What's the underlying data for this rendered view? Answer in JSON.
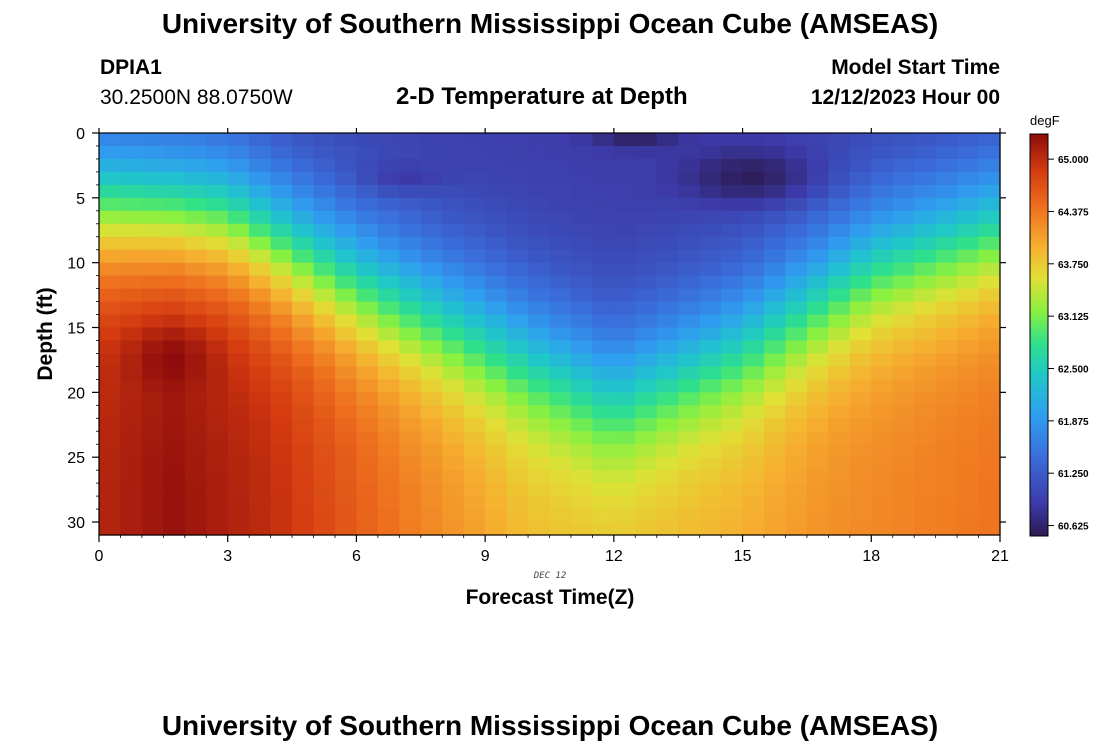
{
  "page": {
    "title": "University of Southern Mississippi Ocean Cube (AMSEAS)",
    "station": "DPIA1",
    "coordinates": "30.2500N  88.0750W",
    "subtitle": "2-D Temperature at Depth",
    "start_label": "Model Start Time",
    "start_value": "12/12/2023 Hour 00",
    "footer_title": "University of Southern Mississippi Ocean Cube (AMSEAS)"
  },
  "chart_data": {
    "type": "heatmap",
    "title": "2-D Temperature at Depth",
    "xlabel": "Forecast Time(Z)",
    "ylabel": "Depth (ft)",
    "x_annotation": "DEC 12",
    "xlim": [
      0,
      21
    ],
    "ylim": [
      0,
      31
    ],
    "x_ticks": [
      0,
      3,
      6,
      9,
      12,
      15,
      18,
      21
    ],
    "y_ticks": [
      0,
      5,
      10,
      15,
      20,
      25,
      30
    ],
    "colorbar": {
      "unit": "degF",
      "min": 60.5,
      "max": 65.3,
      "ticks": [
        "65.000",
        "64.375",
        "63.750",
        "63.125",
        "62.500",
        "61.875",
        "61.250",
        "60.625"
      ],
      "tick_values": [
        65.0,
        64.375,
        63.75,
        63.125,
        62.5,
        61.875,
        61.25,
        60.625
      ],
      "stops": [
        [
          0.0,
          "#2b1a4f"
        ],
        [
          0.08,
          "#3c3aa8"
        ],
        [
          0.2,
          "#3a6fdc"
        ],
        [
          0.3,
          "#2f9ef0"
        ],
        [
          0.4,
          "#1fc8c8"
        ],
        [
          0.48,
          "#2fe08a"
        ],
        [
          0.56,
          "#8af040"
        ],
        [
          0.64,
          "#e0e035"
        ],
        [
          0.72,
          "#f6b030"
        ],
        [
          0.82,
          "#ee6e1e"
        ],
        [
          0.91,
          "#d33a10"
        ],
        [
          1.0,
          "#8e0c0c"
        ]
      ]
    },
    "grid_shape": {
      "time_steps": 42,
      "depth_levels": 31
    },
    "model_description": {
      "surface_temp": 60.9,
      "deep_temp_by_time": [
        [
          0,
          65.05
        ],
        [
          1.7,
          65.25
        ],
        [
          4,
          65.0
        ],
        [
          7,
          64.4
        ],
        [
          10,
          63.9
        ],
        [
          12,
          63.85
        ],
        [
          15,
          64.0
        ],
        [
          17,
          64.2
        ],
        [
          21,
          64.4
        ]
      ],
      "thermocline_depth_ft_by_time": [
        [
          0,
          5.5
        ],
        [
          3,
          6.5
        ],
        [
          6,
          11.5
        ],
        [
          9,
          15.5
        ],
        [
          12,
          20.0
        ],
        [
          15,
          16.0
        ],
        [
          18,
          10.0
        ],
        [
          21,
          7.0
        ]
      ],
      "thermocline_width_ft": 3.6,
      "cold_cores": [
        {
          "time": 15.3,
          "depth_ft": 3.5,
          "temp": 60.55
        },
        {
          "time": 7.0,
          "depth_ft": 3.5,
          "temp": 60.75
        },
        {
          "time": 12.5,
          "depth_ft": 0.5,
          "temp": 60.7
        }
      ],
      "warm_core": {
        "time": 1.7,
        "depth_ft": 17.0,
        "temp": 65.3
      }
    }
  }
}
